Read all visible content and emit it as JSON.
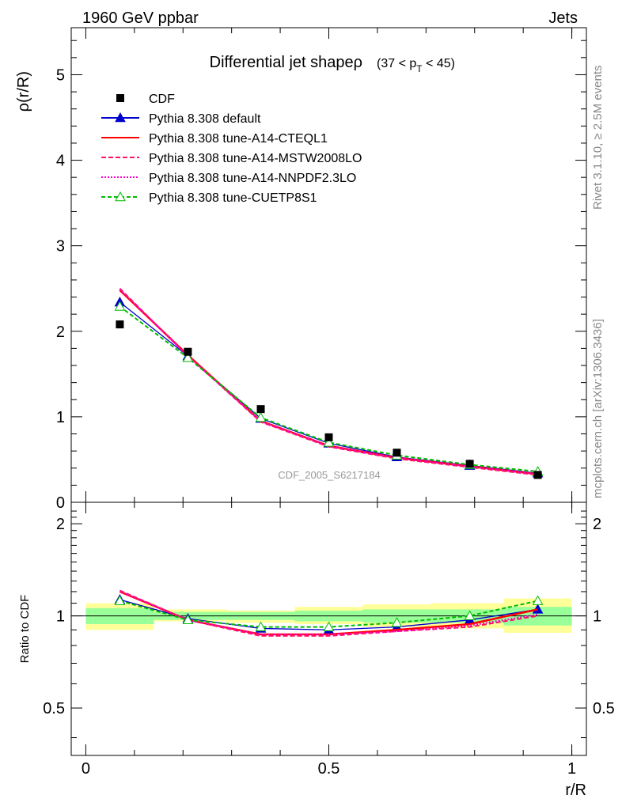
{
  "header": {
    "left": "1960 GeV ppbar",
    "right": "Jets"
  },
  "side_text": {
    "upper": "Rivet 3.1.10, ≥ 2.5M events",
    "lower": "mcplots.cern.ch [arXiv:1306.3436]"
  },
  "watermark": "CDF_2005_S6217184",
  "chart_data": [
    {
      "type": "line",
      "title": "Differential jet shapeρ",
      "title_suffix": "(37 < p",
      "title_sub": "T",
      "title_end": " < 45)",
      "ylabel": "ρ(r/R)",
      "xlabel": "",
      "xlim": [
        -0.03,
        1.03
      ],
      "ylim": [
        0,
        5.55
      ],
      "yticks": [
        0,
        1,
        2,
        3,
        4,
        5
      ],
      "ytick_labels": [
        "0",
        "1",
        "2",
        "3",
        "4",
        "5"
      ],
      "legend_position": "top-left",
      "x": [
        0.07,
        0.21,
        0.36,
        0.5,
        0.64,
        0.79,
        0.93
      ],
      "data": {
        "name": "CDF",
        "values": [
          2.08,
          1.76,
          1.09,
          0.76,
          0.58,
          0.45,
          0.32
        ]
      },
      "series": [
        {
          "name": "Pythia 8.308 default",
          "color": "#0000cc",
          "dash": "",
          "marker": "triangle",
          "values": [
            2.34,
            1.71,
            0.98,
            0.69,
            0.53,
            0.43,
            0.34
          ]
        },
        {
          "name": "Pythia 8.308 tune-A14-CTEQL1",
          "color": "#ff0000",
          "dash": "",
          "marker": "none",
          "values": [
            2.48,
            1.72,
            0.95,
            0.66,
            0.52,
            0.42,
            0.33
          ]
        },
        {
          "name": "Pythia 8.308 tune-A14-MSTW2008LO",
          "color": "#ff1166",
          "dash": "6,3",
          "marker": "none",
          "values": [
            2.5,
            1.71,
            0.94,
            0.65,
            0.51,
            0.41,
            0.32
          ]
        },
        {
          "name": "Pythia 8.308 tune-A14-NNPDF2.3LO",
          "color": "#ff00cc",
          "dash": "2,2",
          "marker": "none",
          "values": [
            2.49,
            1.71,
            0.95,
            0.66,
            0.52,
            0.42,
            0.33
          ]
        },
        {
          "name": "Pythia 8.308 tune-CUETP8S1",
          "color": "#00bb00",
          "dash": "5,3",
          "marker": "open-triangle",
          "values": [
            2.29,
            1.69,
            0.99,
            0.7,
            0.55,
            0.44,
            0.36
          ]
        }
      ]
    },
    {
      "type": "line",
      "title": "",
      "ylabel": "Ratio to CDF",
      "xlabel": "r/R",
      "xlim": [
        -0.03,
        1.03
      ],
      "ylim": [
        0.35,
        2.35
      ],
      "yticks": [
        0.5,
        1,
        2
      ],
      "ytick_labels": [
        "0.5",
        "1",
        "2"
      ],
      "xticks": [
        0,
        0.5,
        1
      ],
      "xtick_labels": [
        "0",
        "0.5",
        "1"
      ],
      "scale": "log",
      "x": [
        0.07,
        0.21,
        0.36,
        0.5,
        0.64,
        0.79,
        0.93
      ],
      "bands": [
        {
          "x0": 0.0,
          "x1": 0.14,
          "yellow": [
            0.9,
            1.1
          ],
          "green": [
            0.94,
            1.06
          ]
        },
        {
          "x0": 0.14,
          "x1": 0.29,
          "yellow": [
            0.96,
            1.05
          ],
          "green": [
            0.97,
            1.03
          ]
        },
        {
          "x0": 0.29,
          "x1": 0.43,
          "yellow": [
            0.95,
            1.04
          ],
          "green": [
            0.97,
            1.03
          ]
        },
        {
          "x0": 0.43,
          "x1": 0.57,
          "yellow": [
            0.94,
            1.07
          ],
          "green": [
            0.96,
            1.04
          ]
        },
        {
          "x0": 0.57,
          "x1": 0.71,
          "yellow": [
            0.92,
            1.09
          ],
          "green": [
            0.95,
            1.05
          ]
        },
        {
          "x0": 0.71,
          "x1": 0.86,
          "yellow": [
            0.91,
            1.1
          ],
          "green": [
            0.95,
            1.05
          ]
        },
        {
          "x0": 0.86,
          "x1": 1.0,
          "yellow": [
            0.88,
            1.14
          ],
          "green": [
            0.93,
            1.07
          ]
        }
      ],
      "series": [
        {
          "name": "Pythia 8.308 default",
          "values": [
            1.13,
            0.98,
            0.91,
            0.9,
            0.92,
            0.97,
            1.05
          ]
        },
        {
          "name": "Pythia 8.308 tune-A14-CTEQL1",
          "values": [
            1.2,
            0.97,
            0.87,
            0.87,
            0.9,
            0.94,
            1.05
          ]
        },
        {
          "name": "Pythia 8.308 tune-A14-MSTW2008LO",
          "values": [
            1.21,
            0.97,
            0.86,
            0.86,
            0.89,
            0.92,
            1.0
          ]
        },
        {
          "name": "Pythia 8.308 tune-A14-NNPDF2.3LO",
          "values": [
            1.2,
            0.97,
            0.87,
            0.87,
            0.89,
            0.93,
            1.01
          ]
        },
        {
          "name": "Pythia 8.308 tune-CUETP8S1",
          "values": [
            1.12,
            0.97,
            0.92,
            0.92,
            0.95,
            1.0,
            1.12
          ]
        }
      ]
    }
  ]
}
